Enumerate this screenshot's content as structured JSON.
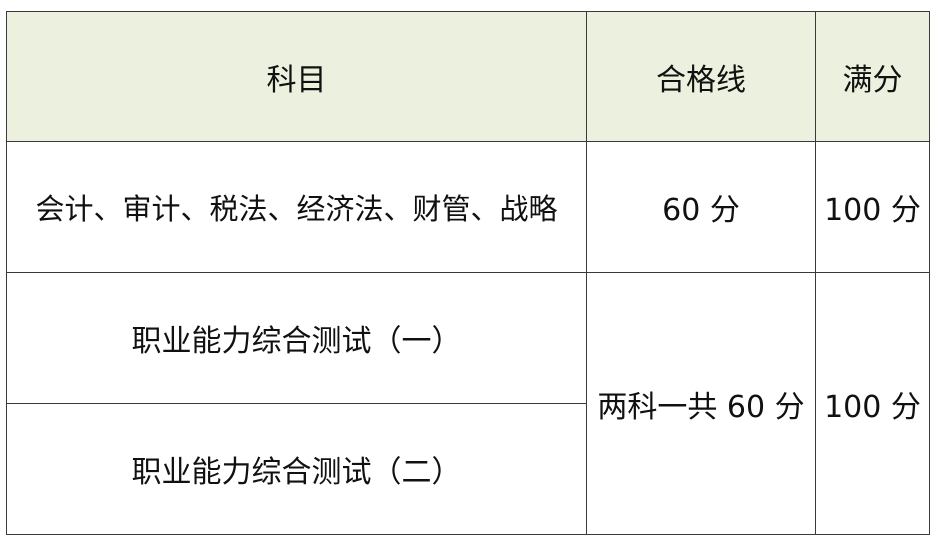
{
  "table": {
    "header": [
      "科目",
      "合格线",
      "满分"
    ],
    "rows": [
      [
        "会计、审计、税法、经济法、财管、战略",
        "60 分",
        "100 分"
      ],
      [
        "职业能力综合测试（一）",
        "两科一共 60 分",
        "100 分"
      ],
      [
        "职业能力综合测试（二）"
      ]
    ]
  }
}
